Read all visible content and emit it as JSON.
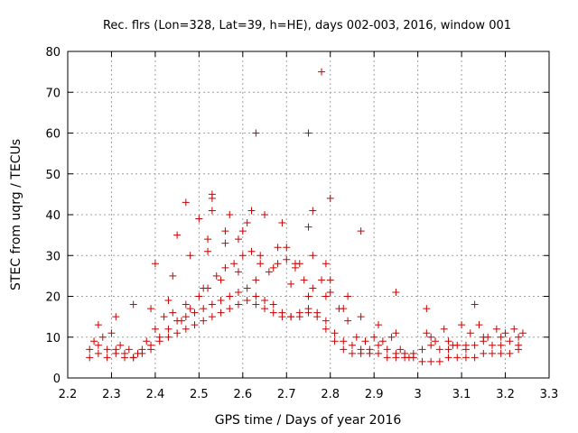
{
  "chart_data": {
    "type": "scatter",
    "title": "Rec. flrs (Lon=328, Lat=39, h=HE), days 002-003, 2016, window 001",
    "xlabel": "GPS time / Days of year 2016",
    "ylabel": "STEC from uqrg / TECUs",
    "xlim": [
      2.2,
      3.3
    ],
    "ylim": [
      0,
      80
    ],
    "xticks": [
      2.2,
      2.3,
      2.4,
      2.5,
      2.6,
      2.7,
      2.8,
      2.9,
      3.0,
      3.1,
      3.2,
      3.3
    ],
    "xtick_labels": [
      "2.2",
      "2.3",
      "2.4",
      "2.5",
      "2.6",
      "2.7",
      "2.8",
      "2.9",
      "3",
      "3.1",
      "3.2",
      "3.3"
    ],
    "yticks": [
      0,
      10,
      20,
      30,
      40,
      50,
      60,
      70,
      80
    ],
    "ytick_labels": [
      "0",
      "10",
      "20",
      "30",
      "40",
      "50",
      "60",
      "70",
      "80"
    ],
    "grid": true,
    "marker": "+",
    "color": "#cc0000",
    "series": [
      {
        "x": [
          2.25,
          2.27,
          2.29,
          2.31,
          2.33,
          2.35,
          2.37,
          2.39,
          2.41,
          2.43,
          2.45,
          2.47,
          2.49,
          2.51,
          2.53,
          2.55,
          2.57,
          2.59,
          2.61,
          2.63,
          2.65,
          2.67,
          2.69,
          2.71,
          2.73,
          2.75,
          2.77,
          2.79,
          2.81,
          2.83,
          2.85,
          2.87,
          2.89,
          2.91,
          2.93,
          2.95,
          2.97,
          2.99,
          3.01,
          3.03,
          3.05,
          3.07,
          3.09,
          3.11,
          3.13,
          3.15,
          3.17,
          3.19,
          3.21,
          3.23,
          2.25,
          2.27,
          2.29,
          2.31,
          2.33,
          2.35,
          2.37,
          2.39,
          2.41,
          2.43,
          2.45,
          2.47,
          2.49,
          2.51,
          2.53,
          2.55,
          2.57,
          2.59,
          2.61,
          2.63,
          2.65,
          2.67,
          2.69,
          2.71,
          2.73,
          2.75,
          2.77,
          2.79,
          2.81,
          2.83,
          2.85,
          2.87,
          2.89,
          2.91,
          2.93,
          2.95,
          2.97,
          2.99,
          3.01,
          3.03,
          3.05,
          3.07,
          3.09,
          3.11,
          3.13,
          3.15,
          3.17,
          3.19,
          3.21,
          3.23,
          2.26,
          2.28,
          2.3,
          2.32,
          2.34,
          2.36,
          2.38,
          2.4,
          2.42,
          2.44,
          2.46,
          2.48,
          2.5,
          2.52,
          2.54,
          2.56,
          2.58,
          2.6,
          2.62,
          2.64,
          2.66,
          2.68,
          2.7,
          2.72,
          2.74,
          2.76,
          2.78,
          2.8,
          2.82,
          2.84,
          2.86,
          2.88,
          2.9,
          2.92,
          2.94,
          2.96,
          2.98,
          3.02,
          3.04,
          3.06,
          3.08,
          3.1,
          3.12,
          3.14,
          3.16,
          3.18,
          3.2,
          3.22,
          3.24,
          2.27,
          2.31,
          2.35,
          2.39,
          2.43,
          2.47,
          2.51,
          2.55,
          2.59,
          2.63,
          2.67,
          2.71,
          2.75,
          2.79,
          2.83,
          2.87,
          2.91,
          2.95,
          3.03,
          3.07,
          3.11,
          3.15,
          3.19,
          3.23,
          2.4,
          2.44,
          2.48,
          2.52,
          2.56,
          2.6,
          2.64,
          2.68,
          2.72,
          2.76,
          2.8,
          2.84,
          2.45,
          2.5,
          2.53,
          2.56,
          2.61,
          2.65,
          2.7,
          2.75,
          2.79,
          2.47,
          2.53,
          2.57,
          2.62,
          2.69,
          2.76,
          2.8,
          2.87,
          2.95,
          3.02,
          3.13,
          2.63,
          2.75,
          2.78,
          2.53,
          2.59,
          2.73,
          2.52
        ],
        "y": [
          5,
          6,
          5,
          6,
          5,
          5,
          6,
          7,
          9,
          10,
          11,
          12,
          13,
          14,
          15,
          16,
          17,
          18,
          19,
          18,
          17,
          16,
          15,
          15,
          15,
          16,
          15,
          12,
          9,
          7,
          6,
          6,
          6,
          6,
          5,
          5,
          5,
          5,
          4,
          4,
          4,
          5,
          5,
          5,
          5,
          6,
          6,
          6,
          6,
          7,
          7,
          8,
          7,
          7,
          6,
          5,
          7,
          8,
          10,
          12,
          14,
          15,
          16,
          17,
          18,
          19,
          20,
          21,
          22,
          20,
          19,
          18,
          16,
          15,
          16,
          17,
          16,
          14,
          11,
          9,
          8,
          7,
          7,
          8,
          7,
          6,
          6,
          6,
          7,
          8,
          7,
          7,
          8,
          8,
          8,
          9,
          8,
          8,
          9,
          10,
          9,
          10,
          11,
          8,
          7,
          6,
          9,
          12,
          15,
          16,
          14,
          17,
          20,
          22,
          25,
          27,
          28,
          30,
          31,
          28,
          26,
          28,
          29,
          27,
          24,
          22,
          24,
          21,
          17,
          14,
          10,
          9,
          10,
          9,
          10,
          7,
          5,
          11,
          9,
          12,
          8,
          13,
          11,
          13,
          10,
          12,
          11,
          12,
          11,
          13,
          15,
          18,
          17,
          19,
          18,
          22,
          24,
          26,
          24,
          27,
          23,
          20,
          20,
          17,
          15,
          13,
          11,
          10,
          9,
          7,
          10,
          10,
          8,
          28,
          25,
          30,
          31,
          33,
          36,
          30,
          32,
          28,
          30,
          24,
          20,
          35,
          39,
          45,
          36,
          38,
          40,
          32,
          37,
          28,
          43,
          44,
          40,
          41,
          38,
          41,
          44,
          36,
          21,
          17,
          18,
          60,
          60,
          75,
          41,
          34,
          28,
          34
        ]
      }
    ]
  }
}
